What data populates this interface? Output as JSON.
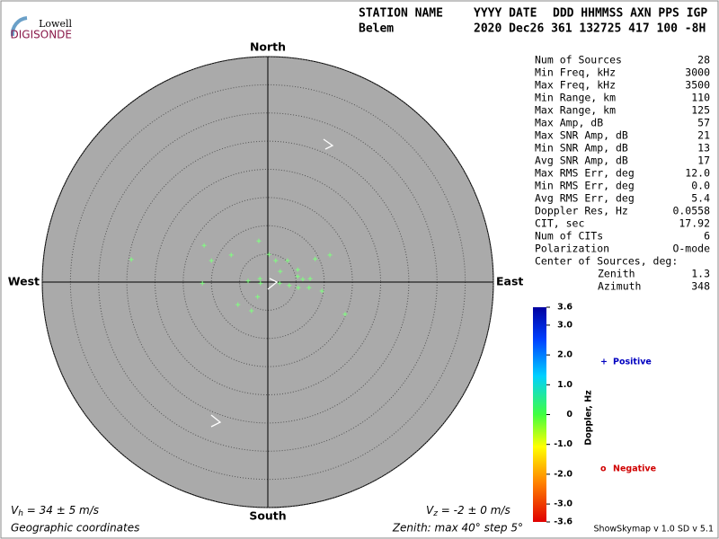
{
  "logo": {
    "top": "Lowell",
    "bottom": "DIGISONDE"
  },
  "header": {
    "columns": [
      "STATION NAME",
      "YYYY DATE",
      "DDD HHMMSS AXN PPS IGP"
    ],
    "values": [
      "Belem",
      "2020 Dec26 361 132725 417 100 -8H"
    ]
  },
  "stats": [
    [
      "Num of Sources",
      "28"
    ],
    [
      "Min Freq, kHz",
      "3000"
    ],
    [
      "Max Freq, kHz",
      "3500"
    ],
    [
      "Min Range, km",
      "110"
    ],
    [
      "Max Range, km",
      "125"
    ],
    [
      "Max Amp, dB",
      "57"
    ],
    [
      "Max SNR Amp, dB",
      "21"
    ],
    [
      "Min SNR Amp, dB",
      "13"
    ],
    [
      "Avg SNR Amp, dB",
      "17"
    ],
    [
      "Max RMS Err, deg",
      "12.0"
    ],
    [
      "Min RMS Err, deg",
      "0.0"
    ],
    [
      "Avg RMS Err, deg",
      "5.4"
    ],
    [
      "Doppler Res, Hz",
      "0.0558"
    ],
    [
      "CIT, sec",
      "17.92"
    ],
    [
      "Num of CITs",
      "6"
    ],
    [
      "Polarization",
      "O-mode"
    ],
    [
      "Center of Sources, deg:"
    ],
    [
      "Zenith",
      "1.3"
    ],
    [
      "Azimuth",
      "348"
    ]
  ],
  "chart_data": {
    "type": "skymap",
    "directions": {
      "north": "North",
      "south": "South",
      "east": "East",
      "west": "West"
    },
    "rlim": [
      0,
      40
    ],
    "rticks": [
      5,
      10,
      15,
      20,
      25,
      30,
      35,
      40
    ],
    "series": [
      {
        "name": "Positive",
        "symbol": "+",
        "color": "#80ff80",
        "x": [
          -24.2,
          -11.3,
          -10.0,
          -6.5,
          -1.6,
          0.2,
          1.4,
          3.5,
          8.4,
          11.0,
          5.3,
          2.2,
          5.3,
          6.2,
          7.5,
          5.4,
          7.3,
          9.6,
          3.8,
          2.1,
          -1.4,
          -1.3,
          -3.5,
          -11.6,
          -1.8,
          -5.3,
          -2.9,
          13.7
        ],
        "values": [
          4.0,
          6.5,
          3.8,
          4.8,
          7.3,
          4.9,
          3.8,
          3.8,
          4.1,
          4.8,
          2.2,
          1.9,
          1.0,
          0.5,
          0.6,
          -1.0,
          -1.0,
          -1.6,
          -0.6,
          -0.2,
          0.6,
          -0.2,
          0.2,
          -0.2,
          -2.6,
          -4.0,
          -5.1,
          -5.7
        ]
      }
    ],
    "legend": [
      {
        "symbol": "+",
        "label": "Positive",
        "color": "#0000c0"
      },
      {
        "symbol": "o",
        "label": "Negative",
        "color": "#d00000"
      }
    ],
    "colorbar": {
      "label": "Doppler, Hz",
      "lim": [
        -3.6,
        3.6
      ],
      "ticks": [
        3.6,
        {
          "value": 3,
          "label": "3.0"
        },
        {
          "value": 2,
          "label": "2.0"
        },
        {
          "value": 1,
          "label": "1.0"
        },
        0,
        {
          "value": -1,
          "label": "-1.0"
        },
        {
          "value": -2,
          "label": "-2.0"
        },
        {
          "value": -3,
          "label": "-3.0"
        },
        -3.6
      ]
    },
    "vh": {
      "symbol": "V",
      "sub": "h",
      "text": " = 34 ± 5 m/s"
    },
    "vz": {
      "symbol": "V",
      "sub": "z",
      "text": " = -2 ± 0 m/s"
    },
    "coordinates": "Geographic coordinates",
    "zenith_note": "Zenith: max 40°  step 5°",
    "version": "ShowSkymap v 1.0  SD v 5.1"
  }
}
